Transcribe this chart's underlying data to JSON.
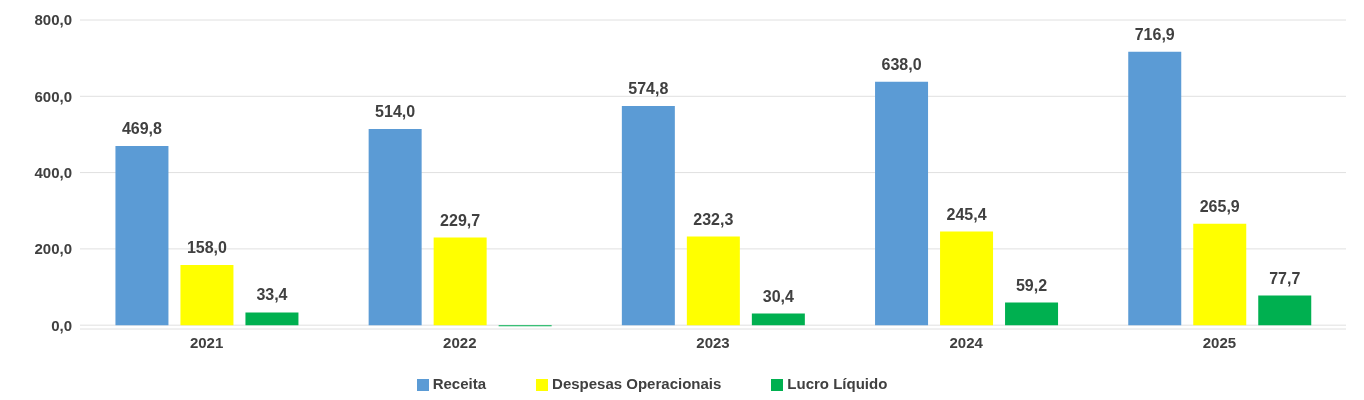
{
  "chart_data": {
    "type": "bar",
    "categories": [
      "2021",
      "2022",
      "2023",
      "2024",
      "2025"
    ],
    "series": [
      {
        "name": "Receita",
        "color": "#5b9bd5",
        "values": [
          469.8,
          514.0,
          574.8,
          638.0,
          716.9
        ],
        "value_labels": [
          "469,8",
          "514,0",
          "574,8",
          "638,0",
          "716,9"
        ]
      },
      {
        "name": "Despesas Operacionais",
        "color": "#ffff00",
        "values": [
          158.0,
          229.7,
          232.3,
          245.4,
          265.9
        ],
        "value_labels": [
          "158,0",
          "229,7",
          "232,3",
          "245,4",
          "265,9"
        ]
      },
      {
        "name": "Lucro Líquido",
        "color": "#00b050",
        "values": [
          33.4,
          -3,
          30.4,
          59.2,
          77.7
        ],
        "value_labels": [
          "33,4",
          null,
          "30,4",
          "59,2",
          "77,7"
        ]
      }
    ],
    "ylim": [
      -10,
      800
    ],
    "yticks": [
      {
        "value": 0,
        "label": "0,0"
      },
      {
        "value": 200,
        "label": "200,0"
      },
      {
        "value": 400,
        "label": "400,0"
      },
      {
        "value": 600,
        "label": "600,0"
      },
      {
        "value": 800,
        "label": "800,0"
      }
    ],
    "grid": "y",
    "legend": "bottom"
  }
}
